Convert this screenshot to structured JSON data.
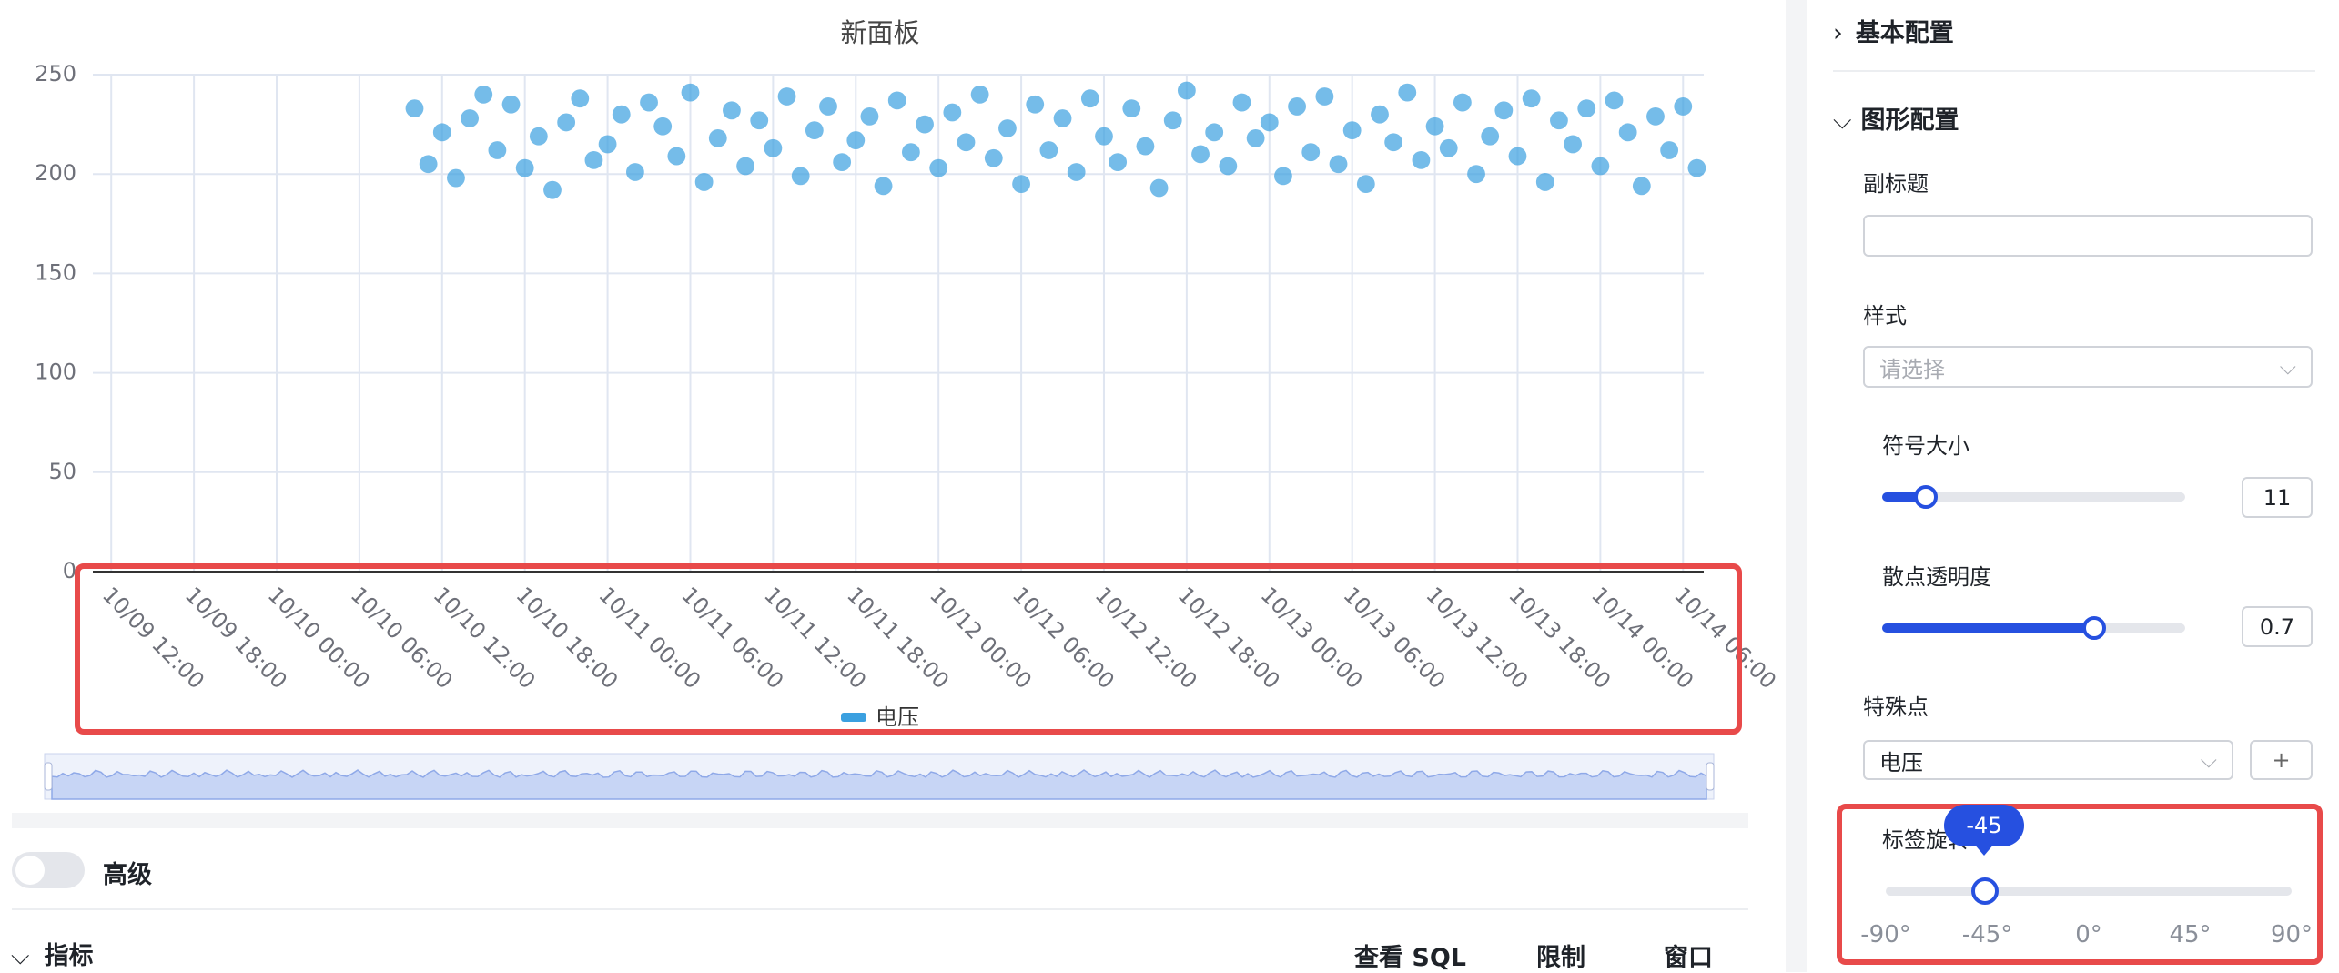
{
  "chart_data": {
    "type": "scatter",
    "title": "新面板",
    "x": [
      "10/10 10:00",
      "10/10 11:00",
      "10/10 12:00",
      "10/10 13:00",
      "10/10 14:00",
      "10/10 15:00",
      "10/10 16:00",
      "10/10 17:00",
      "10/10 18:00",
      "10/10 19:00",
      "10/10 20:00",
      "10/10 21:00",
      "10/10 22:00",
      "10/10 23:00",
      "10/11 00:00",
      "10/11 01:00",
      "10/11 02:00",
      "10/11 03:00",
      "10/11 04:00",
      "10/11 05:00",
      "10/11 06:00",
      "10/11 07:00",
      "10/11 08:00",
      "10/11 09:00",
      "10/11 10:00",
      "10/11 11:00",
      "10/11 12:00",
      "10/11 13:00",
      "10/11 14:00",
      "10/11 15:00",
      "10/11 16:00",
      "10/11 17:00",
      "10/11 18:00",
      "10/11 19:00",
      "10/11 20:00",
      "10/11 21:00",
      "10/11 22:00",
      "10/11 23:00",
      "10/12 00:00",
      "10/12 01:00",
      "10/12 02:00",
      "10/12 03:00",
      "10/12 04:00",
      "10/12 05:00",
      "10/12 06:00",
      "10/12 07:00",
      "10/12 08:00",
      "10/12 09:00",
      "10/12 10:00",
      "10/12 11:00",
      "10/12 12:00",
      "10/12 13:00",
      "10/12 14:00",
      "10/12 15:00",
      "10/12 16:00",
      "10/12 17:00",
      "10/12 18:00",
      "10/12 19:00",
      "10/12 20:00",
      "10/12 21:00",
      "10/12 22:00",
      "10/12 23:00",
      "10/13 00:00",
      "10/13 01:00",
      "10/13 02:00",
      "10/13 03:00",
      "10/13 04:00",
      "10/13 05:00",
      "10/13 06:00",
      "10/13 07:00",
      "10/13 08:00",
      "10/13 09:00",
      "10/13 10:00",
      "10/13 11:00",
      "10/13 12:00",
      "10/13 13:00",
      "10/13 14:00",
      "10/13 15:00",
      "10/13 16:00",
      "10/13 17:00",
      "10/13 18:00",
      "10/13 19:00",
      "10/13 20:00",
      "10/13 21:00",
      "10/13 22:00",
      "10/13 23:00",
      "10/14 00:00",
      "10/14 01:00",
      "10/14 02:00",
      "10/14 03:00",
      "10/14 04:00",
      "10/14 05:00",
      "10/14 06:00",
      "10/14 07:00"
    ],
    "series": [
      {
        "name": "电压",
        "color": "#3ba0e0",
        "values": [
          233,
          205,
          221,
          198,
          228,
          240,
          212,
          235,
          203,
          219,
          192,
          226,
          238,
          207,
          215,
          230,
          201,
          236,
          224,
          209,
          241,
          196,
          218,
          232,
          204,
          227,
          213,
          239,
          199,
          222,
          234,
          206,
          217,
          229,
          194,
          237,
          211,
          225,
          203,
          231,
          216,
          240,
          208,
          223,
          195,
          235,
          212,
          228,
          201,
          238,
          219,
          206,
          233,
          214,
          193,
          227,
          242,
          210,
          221,
          204,
          236,
          218,
          226,
          199,
          234,
          211,
          239,
          205,
          222,
          195,
          230,
          216,
          241,
          207,
          224,
          213,
          236,
          200,
          219,
          232,
          209,
          238,
          196,
          227,
          215,
          233,
          204,
          237,
          221,
          194,
          229,
          212,
          234,
          203
        ]
      }
    ],
    "xlim": [
      "10/09 10:40",
      "10/14 07:30"
    ],
    "xticks": [
      "10/09 12:00",
      "10/09 18:00",
      "10/10 00:00",
      "10/10 06:00",
      "10/10 12:00",
      "10/10 18:00",
      "10/11 00:00",
      "10/11 06:00",
      "10/11 12:00",
      "10/11 18:00",
      "10/12 00:00",
      "10/12 06:00",
      "10/12 12:00",
      "10/12 18:00",
      "10/13 00:00",
      "10/13 06:00",
      "10/13 12:00",
      "10/13 18:00",
      "10/14 00:00",
      "10/14 06:00"
    ],
    "ylim": [
      0,
      250
    ],
    "yticks": [
      0,
      50,
      100,
      150,
      200,
      250
    ],
    "grid": true
  },
  "panel": {
    "sections": [
      "基本配置",
      "图形配置"
    ],
    "subtitle_label": "副标题",
    "style_label": "样式",
    "style_placeholder": "请选择",
    "symbol_size": {
      "label": "符号大小",
      "value": 11
    },
    "opacity": {
      "label": "散点透明度",
      "value": 0.7
    },
    "special": {
      "label": "特殊点",
      "value": "电压"
    },
    "rotation": {
      "label": "标签旋转",
      "value": -45,
      "marks": [
        "-90°",
        "-45°",
        "0°",
        "45°",
        "90°"
      ]
    }
  },
  "bottom": {
    "advanced": "高级",
    "metrics": "指标",
    "actions": [
      "查看 SQL",
      "限制",
      "窗口"
    ]
  }
}
